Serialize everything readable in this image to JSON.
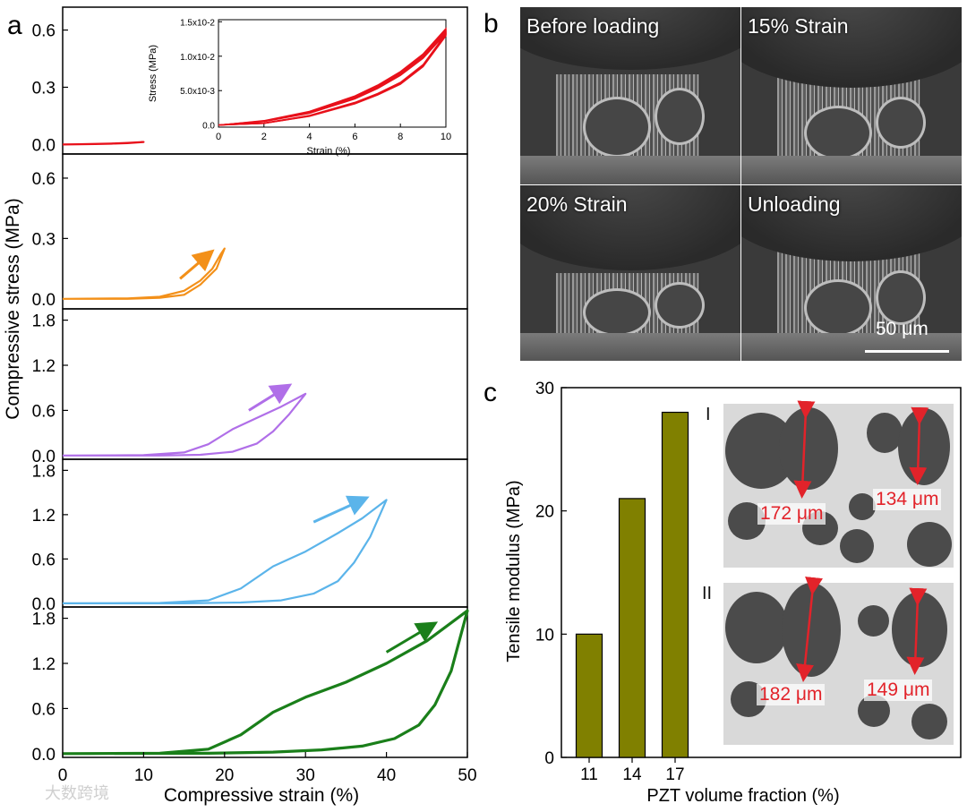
{
  "panel_labels": {
    "a": "a",
    "b": "b",
    "c": "c"
  },
  "colors": {
    "red": "#e8111b",
    "orange": "#f39019",
    "purple": "#b06fe8",
    "blue": "#5bb4ea",
    "green": "#1a7f1a",
    "bar": "#808000",
    "measure": "#e2232a"
  },
  "panel_b": {
    "labels": [
      "Before loading",
      "15% Strain",
      "20% Strain",
      "Unloading"
    ],
    "scale_bar": "50 μm"
  },
  "panel_c_images": {
    "I": {
      "label": "I",
      "measures": [
        "172 μm",
        "134 μm"
      ]
    },
    "II": {
      "label": "II",
      "measures": [
        "182 μm",
        "149 μm"
      ]
    }
  },
  "watermark": "大数跨境",
  "chart_data": [
    {
      "type": "line",
      "panel": "a",
      "title": "",
      "xlabel": "Compressive strain (%)",
      "ylabel": "Compressive stress (MPa)",
      "xlim": [
        0,
        50
      ],
      "xticks": [
        "0",
        "10",
        "20",
        "30",
        "40",
        "50"
      ],
      "subplots": [
        {
          "name": "red",
          "color": "#e8111b",
          "ylim": [
            -0.05,
            0.72
          ],
          "yticks": [
            "0.0",
            "0.3",
            "0.6"
          ],
          "yticks_values": [
            0,
            0.3,
            0.6
          ],
          "arrow": null,
          "loading": [
            [
              0,
              0
            ],
            [
              2,
              0.001
            ],
            [
              4,
              0.003
            ],
            [
              6,
              0.005
            ],
            [
              8,
              0.008
            ],
            [
              10,
              0.013
            ]
          ],
          "unloading": [
            [
              10,
              0.013
            ],
            [
              8,
              0.007
            ],
            [
              6,
              0.004
            ],
            [
              4,
              0.002
            ],
            [
              2,
              0.0005
            ],
            [
              0,
              0
            ]
          ]
        },
        {
          "name": "orange",
          "color": "#f39019",
          "ylim": [
            -0.05,
            0.72
          ],
          "yticks": [
            "0.0",
            "0.3",
            "0.6"
          ],
          "yticks_values": [
            0,
            0.3,
            0.6
          ],
          "arrow": [
            [
              14.5,
              0.1
            ],
            [
              18,
              0.22
            ]
          ],
          "loading": [
            [
              0,
              0
            ],
            [
              8,
              0.002
            ],
            [
              12,
              0.01
            ],
            [
              15,
              0.04
            ],
            [
              17,
              0.09
            ],
            [
              18.5,
              0.15
            ],
            [
              19.5,
              0.22
            ],
            [
              20,
              0.25
            ]
          ],
          "unloading": [
            [
              20,
              0.25
            ],
            [
              19,
              0.15
            ],
            [
              17,
              0.07
            ],
            [
              15,
              0.02
            ],
            [
              12,
              0.005
            ],
            [
              8,
              0
            ],
            [
              0,
              0
            ]
          ]
        },
        {
          "name": "purple",
          "color": "#b06fe8",
          "ylim": [
            -0.05,
            1.95
          ],
          "yticks": [
            "0.0",
            "0.6",
            "1.2",
            "1.8"
          ],
          "yticks_values": [
            0,
            0.6,
            1.2,
            1.8
          ],
          "arrow": [
            [
              23,
              0.6
            ],
            [
              27.5,
              0.9
            ]
          ],
          "loading": [
            [
              0,
              0
            ],
            [
              10,
              0.005
            ],
            [
              15,
              0.04
            ],
            [
              18,
              0.15
            ],
            [
              21,
              0.35
            ],
            [
              24,
              0.5
            ],
            [
              27,
              0.65
            ],
            [
              30,
              0.82
            ]
          ],
          "unloading": [
            [
              30,
              0.82
            ],
            [
              28,
              0.55
            ],
            [
              26,
              0.32
            ],
            [
              24,
              0.16
            ],
            [
              21,
              0.05
            ],
            [
              17,
              0.01
            ],
            [
              12,
              0
            ],
            [
              0,
              0
            ]
          ]
        },
        {
          "name": "blue",
          "color": "#5bb4ea",
          "ylim": [
            -0.05,
            1.95
          ],
          "yticks": [
            "0.0",
            "0.6",
            "1.2",
            "1.8"
          ],
          "yticks_values": [
            0,
            0.6,
            1.2,
            1.8
          ],
          "arrow": [
            [
              31,
              1.1
            ],
            [
              37,
              1.4
            ]
          ],
          "loading": [
            [
              0,
              0
            ],
            [
              12,
              0.005
            ],
            [
              18,
              0.04
            ],
            [
              22,
              0.2
            ],
            [
              26,
              0.5
            ],
            [
              30,
              0.7
            ],
            [
              34,
              0.95
            ],
            [
              37,
              1.15
            ],
            [
              40,
              1.4
            ]
          ],
          "unloading": [
            [
              40,
              1.4
            ],
            [
              38,
              0.9
            ],
            [
              36,
              0.55
            ],
            [
              34,
              0.3
            ],
            [
              31,
              0.13
            ],
            [
              27,
              0.04
            ],
            [
              22,
              0.01
            ],
            [
              15,
              0
            ],
            [
              0,
              0
            ]
          ]
        },
        {
          "name": "green",
          "color": "#1a7f1a",
          "ylim": [
            -0.05,
            1.95
          ],
          "yticks": [
            "0.0",
            "0.6",
            "1.2",
            "1.8"
          ],
          "yticks_values": [
            0,
            0.6,
            1.2,
            1.8
          ],
          "arrow": [
            [
              40,
              1.35
            ],
            [
              45.5,
              1.7
            ]
          ],
          "loading": [
            [
              0,
              0
            ],
            [
              12,
              0.005
            ],
            [
              18,
              0.06
            ],
            [
              22,
              0.25
            ],
            [
              26,
              0.55
            ],
            [
              30,
              0.75
            ],
            [
              35,
              0.95
            ],
            [
              40,
              1.2
            ],
            [
              45,
              1.5
            ],
            [
              50,
              1.9
            ]
          ],
          "unloading": [
            [
              50,
              1.9
            ],
            [
              48,
              1.1
            ],
            [
              46,
              0.65
            ],
            [
              44,
              0.38
            ],
            [
              41,
              0.2
            ],
            [
              37,
              0.1
            ],
            [
              32,
              0.05
            ],
            [
              26,
              0.02
            ],
            [
              18,
              0.005
            ],
            [
              0,
              0
            ]
          ]
        }
      ],
      "inset": {
        "xlabel": "Strain (%)",
        "ylabel": "Stress (MPa)",
        "xlim": [
          0,
          10
        ],
        "ylim": [
          -0.0003,
          0.0153
        ],
        "xticks": [
          "0",
          "2",
          "4",
          "6",
          "8",
          "10"
        ],
        "yticks": [
          "0.0",
          "5.0x10-3",
          "1.0x10-2",
          "1.5x10-2"
        ],
        "yticks_values": [
          0,
          0.005,
          0.01,
          0.015
        ]
      }
    },
    {
      "type": "bar",
      "panel": "c",
      "xlabel": "PZT volume fraction (%)",
      "ylabel": "Tensile modulus (MPa)",
      "categories": [
        "11",
        "14",
        "17"
      ],
      "values": [
        10,
        21,
        28
      ],
      "ylim": [
        0,
        30
      ],
      "yticks": [
        "0",
        "10",
        "20",
        "30"
      ],
      "yticks_values": [
        0,
        10,
        20,
        30
      ]
    }
  ]
}
